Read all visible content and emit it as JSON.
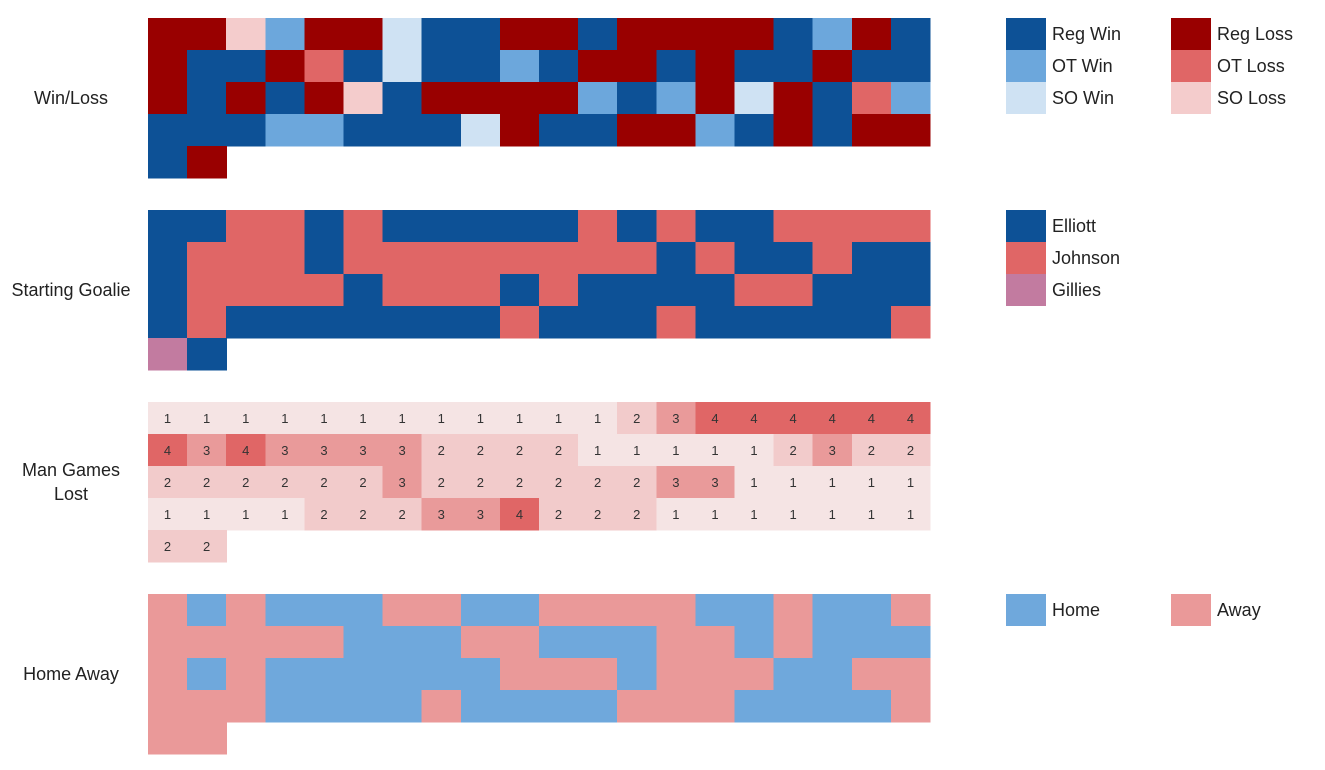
{
  "chart_data": [
    {
      "type": "heatmap",
      "name": "Win/Loss",
      "rows": [
        [
          "Reg Loss",
          "Reg Loss",
          "SO Loss",
          "OT Win",
          "Reg Loss",
          "Reg Loss",
          "SO Win",
          "Reg Win",
          "Reg Win",
          "Reg Loss",
          "Reg Loss",
          "Reg Win",
          "Reg Loss",
          "Reg Loss",
          "Reg Loss",
          "Reg Loss",
          "Reg Win",
          "OT Win",
          "Reg Loss",
          "Reg Win"
        ],
        [
          "Reg Loss",
          "Reg Win",
          "Reg Win",
          "Reg Loss",
          "OT Loss",
          "Reg Win",
          "SO Win",
          "Reg Win",
          "Reg Win",
          "OT Win",
          "Reg Win",
          "Reg Loss",
          "Reg Loss",
          "Reg Win",
          "Reg Loss",
          "Reg Win",
          "Reg Win",
          "Reg Loss",
          "Reg Win",
          "Reg Win"
        ],
        [
          "Reg Loss",
          "Reg Win",
          "Reg Loss",
          "Reg Win",
          "Reg Loss",
          "SO Loss",
          "Reg Win",
          "Reg Loss",
          "Reg Loss",
          "Reg Loss",
          "Reg Loss",
          "OT Win",
          "Reg Win",
          "OT Win",
          "Reg Loss",
          "SO Win",
          "Reg Loss",
          "Reg Win",
          "OT Loss",
          "OT Win"
        ],
        [
          "Reg Win",
          "Reg Win",
          "Reg Win",
          "OT Win",
          "OT Win",
          "Reg Win",
          "Reg Win",
          "Reg Win",
          "SO Win",
          "Reg Loss",
          "Reg Win",
          "Reg Win",
          "Reg Loss",
          "Reg Loss",
          "OT Win",
          "Reg Win",
          "Reg Loss",
          "Reg Win",
          "Reg Loss",
          "Reg Loss"
        ],
        [
          "Reg Win",
          "Reg Loss"
        ]
      ],
      "legend": [
        {
          "label": "Reg Win",
          "color": "#0d5196"
        },
        {
          "label": "Reg Loss",
          "color": "#990000"
        },
        {
          "label": "OT Win",
          "color": "#6ca7dc"
        },
        {
          "label": "OT Loss",
          "color": "#e06666"
        },
        {
          "label": "SO Win",
          "color": "#cfe2f3"
        },
        {
          "label": "SO Loss",
          "color": "#f4cccc"
        }
      ]
    },
    {
      "type": "heatmap",
      "name": "Starting Goalie",
      "rows": [
        [
          "Elliott",
          "Elliott",
          "Johnson",
          "Johnson",
          "Elliott",
          "Johnson",
          "Elliott",
          "Elliott",
          "Elliott",
          "Elliott",
          "Elliott",
          "Johnson",
          "Elliott",
          "Johnson",
          "Elliott",
          "Elliott",
          "Johnson",
          "Johnson",
          "Johnson",
          "Johnson"
        ],
        [
          "Elliott",
          "Johnson",
          "Johnson",
          "Johnson",
          "Elliott",
          "Johnson",
          "Johnson",
          "Johnson",
          "Johnson",
          "Johnson",
          "Johnson",
          "Johnson",
          "Johnson",
          "Elliott",
          "Johnson",
          "Elliott",
          "Elliott",
          "Johnson",
          "Elliott",
          "Elliott"
        ],
        [
          "Elliott",
          "Johnson",
          "Johnson",
          "Johnson",
          "Johnson",
          "Elliott",
          "Johnson",
          "Johnson",
          "Johnson",
          "Elliott",
          "Johnson",
          "Elliott",
          "Elliott",
          "Elliott",
          "Elliott",
          "Johnson",
          "Johnson",
          "Elliott",
          "Elliott",
          "Elliott"
        ],
        [
          "Elliott",
          "Johnson",
          "Elliott",
          "Elliott",
          "Elliott",
          "Elliott",
          "Elliott",
          "Elliott",
          "Elliott",
          "Johnson",
          "Elliott",
          "Elliott",
          "Elliott",
          "Johnson",
          "Elliott",
          "Elliott",
          "Elliott",
          "Elliott",
          "Elliott",
          "Johnson"
        ],
        [
          "Gillies",
          "Elliott"
        ]
      ],
      "legend": [
        {
          "label": "Elliott",
          "color": "#0d5196"
        },
        {
          "label": "Johnson",
          "color": "#e06666"
        },
        {
          "label": "Gillies",
          "color": "#c27ba0"
        }
      ]
    },
    {
      "type": "heatmap",
      "name": "Man Games Lost",
      "rows": [
        [
          1,
          1,
          1,
          1,
          1,
          1,
          1,
          1,
          1,
          1,
          1,
          1,
          2,
          3,
          4,
          4,
          4,
          4,
          4,
          4
        ],
        [
          4,
          3,
          4,
          3,
          3,
          3,
          3,
          2,
          2,
          2,
          2,
          1,
          1,
          1,
          1,
          1,
          2,
          3,
          2,
          2
        ],
        [
          2,
          2,
          2,
          2,
          2,
          2,
          3,
          2,
          2,
          2,
          2,
          2,
          2,
          3,
          3,
          1,
          1,
          1,
          1,
          1
        ],
        [
          1,
          1,
          1,
          1,
          2,
          2,
          2,
          3,
          3,
          4,
          2,
          2,
          2,
          1,
          1,
          1,
          1,
          1,
          1,
          1
        ],
        [
          2,
          2
        ]
      ],
      "scale": {
        "1": "#f5e4e4",
        "2": "#f2cbcb",
        "3": "#e99a9a",
        "4": "#e06666"
      }
    },
    {
      "type": "heatmap",
      "name": "Home Away",
      "rows": [
        [
          "Away",
          "Home",
          "Away",
          "Home",
          "Home",
          "Home",
          "Away",
          "Away",
          "Home",
          "Home",
          "Away",
          "Away",
          "Away",
          "Away",
          "Home",
          "Home",
          "Away",
          "Home",
          "Home",
          "Away"
        ],
        [
          "Away",
          "Away",
          "Away",
          "Away",
          "Away",
          "Home",
          "Home",
          "Home",
          "Away",
          "Away",
          "Home",
          "Home",
          "Home",
          "Away",
          "Away",
          "Home",
          "Away",
          "Home",
          "Home",
          "Home"
        ],
        [
          "Away",
          "Home",
          "Away",
          "Home",
          "Home",
          "Home",
          "Home",
          "Home",
          "Home",
          "Away",
          "Away",
          "Away",
          "Home",
          "Away",
          "Away",
          "Away",
          "Home",
          "Home",
          "Away",
          "Away"
        ],
        [
          "Away",
          "Away",
          "Away",
          "Home",
          "Home",
          "Home",
          "Home",
          "Away",
          "Home",
          "Home",
          "Home",
          "Home",
          "Away",
          "Away",
          "Away",
          "Home",
          "Home",
          "Home",
          "Home",
          "Away"
        ],
        [
          "Away",
          "Away"
        ]
      ],
      "legend": [
        {
          "label": "Home",
          "color": "#6fa8dc"
        },
        {
          "label": "Away",
          "color": "#ea9999"
        }
      ]
    }
  ]
}
